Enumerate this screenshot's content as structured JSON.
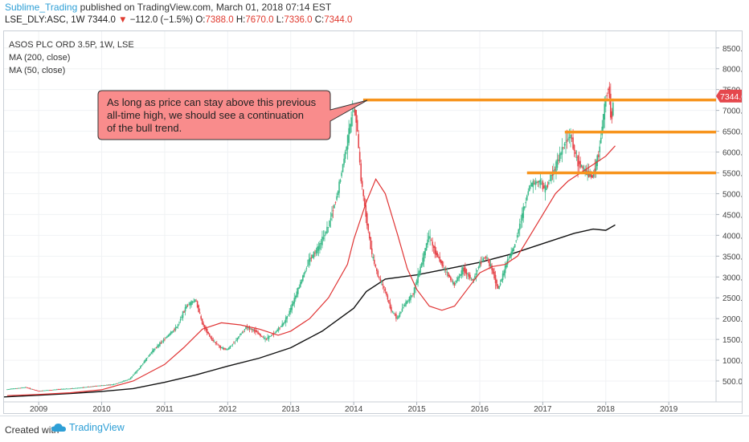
{
  "header": {
    "author": "Sublime_Trading",
    "published_text": "published on TradingView.com, March 01, 2018 07:14 EST",
    "symbol": "LSE_DLY:ASC, 1W",
    "last": "7344.0",
    "change": "−112.0 (−1.5%)",
    "o_label": "O:",
    "o": "7388.0",
    "h_label": "H:",
    "h": "7670.0",
    "l_label": "L:",
    "l": "7336.0",
    "c_label": "C:",
    "c": "7344.0"
  },
  "legend": {
    "instrument": "ASOS PLC ORD 3.5P, 1W, LSE",
    "ma200": "MA (200, close)",
    "ma50": "MA (50, close)"
  },
  "annotation": {
    "line1": "As long as price can stay above this previous",
    "line2": "all-time high, we should see a continuation",
    "line3": "of the bull trend."
  },
  "price_tag": "7344.0",
  "footer": {
    "created_with": "Created with",
    "brand": "TradingView"
  },
  "colors": {
    "up": "#3dba8a",
    "down": "#e5484d",
    "ma50": "#e03434",
    "ma200": "#111111",
    "level": "#f7941d",
    "callout_fill": "#f98c8c",
    "callout_stroke": "#333333",
    "tag": "#e5484d"
  },
  "chart_data": {
    "type": "line",
    "title": "ASOS PLC ORD 3.5P, 1W, LSE",
    "xlim": [
      2008.45,
      2019.75
    ],
    "ylim": [
      0,
      8900
    ],
    "x_ticks": [
      "2009",
      "2010",
      "2011",
      "2012",
      "2013",
      "2014",
      "2015",
      "2016",
      "2017",
      "2018",
      "2019"
    ],
    "y_ticks": [
      "500.0",
      "1000.0",
      "1500.0",
      "2000.0",
      "2500.0",
      "3000.0",
      "3500.0",
      "4000.0",
      "4500.0",
      "5000.0",
      "5500.0",
      "6000.0",
      "6500.0",
      "7000.0",
      "7500.0",
      "8000.0",
      "8500.0"
    ],
    "series": [
      {
        "name": "ASOS PLC ORD 3.5P",
        "style": "candles",
        "x": [
          2008.5,
          2008.8,
          2009.0,
          2009.3,
          2009.6,
          2009.9,
          2010.2,
          2010.45,
          2010.6,
          2010.8,
          2011.0,
          2011.2,
          2011.35,
          2011.5,
          2011.6,
          2011.75,
          2011.9,
          2012.0,
          2012.15,
          2012.3,
          2012.45,
          2012.6,
          2012.75,
          2012.9,
          2013.0,
          2013.15,
          2013.3,
          2013.45,
          2013.6,
          2013.75,
          2013.9,
          2014.0,
          2014.05,
          2014.12,
          2014.2,
          2014.3,
          2014.4,
          2014.5,
          2014.6,
          2014.7,
          2014.8,
          2014.95,
          2015.1,
          2015.2,
          2015.3,
          2015.45,
          2015.6,
          2015.75,
          2015.9,
          2016.0,
          2016.1,
          2016.2,
          2016.3,
          2016.45,
          2016.55,
          2016.7,
          2016.8,
          2016.95,
          2017.05,
          2017.2,
          2017.35,
          2017.45,
          2017.55,
          2017.7,
          2017.8,
          2017.9,
          2018.0,
          2018.05,
          2018.1,
          2018.13
        ],
        "y": [
          300,
          350,
          260,
          300,
          330,
          380,
          420,
          550,
          800,
          1200,
          1500,
          1800,
          2300,
          2450,
          1900,
          1500,
          1300,
          1250,
          1500,
          1800,
          1700,
          1500,
          1650,
          1900,
          2200,
          2800,
          3400,
          3700,
          4200,
          5000,
          6200,
          7050,
          6800,
          5400,
          4500,
          3500,
          3000,
          2700,
          2200,
          2000,
          2300,
          2600,
          3400,
          4000,
          3600,
          3200,
          2800,
          3200,
          2900,
          3300,
          3500,
          3200,
          2700,
          3400,
          3700,
          4600,
          5200,
          5300,
          5100,
          5600,
          6200,
          6400,
          5800,
          5500,
          5400,
          6000,
          7200,
          7600,
          6700,
          7344
        ]
      },
      {
        "name": "MA (50, close)",
        "x": [
          2008.5,
          2009.0,
          2009.5,
          2010.0,
          2010.5,
          2011.0,
          2011.3,
          2011.6,
          2011.9,
          2012.2,
          2012.5,
          2012.8,
          2013.0,
          2013.3,
          2013.6,
          2013.9,
          2014.0,
          2014.2,
          2014.35,
          2014.5,
          2014.7,
          2014.85,
          2015.0,
          2015.2,
          2015.4,
          2015.6,
          2015.8,
          2016.0,
          2016.2,
          2016.4,
          2016.6,
          2016.8,
          2017.0,
          2017.2,
          2017.4,
          2017.6,
          2017.8,
          2018.0,
          2018.15
        ],
        "y": [
          150,
          180,
          220,
          290,
          500,
          900,
          1300,
          1750,
          1900,
          1850,
          1750,
          1600,
          1700,
          2000,
          2500,
          3300,
          3900,
          4800,
          5350,
          5000,
          4000,
          3200,
          2700,
          2300,
          2200,
          2300,
          2700,
          3100,
          3250,
          3300,
          3500,
          4000,
          4500,
          5000,
          5300,
          5500,
          5700,
          5900,
          6150
        ]
      },
      {
        "name": "MA (200, close)",
        "x": [
          2008.45,
          2009.0,
          2009.5,
          2010.0,
          2010.5,
          2011.0,
          2011.5,
          2012.0,
          2012.5,
          2013.0,
          2013.5,
          2014.0,
          2014.2,
          2014.5,
          2015.0,
          2015.5,
          2016.0,
          2016.5,
          2017.0,
          2017.5,
          2017.8,
          2018.0,
          2018.15
        ],
        "y": [
          120,
          160,
          200,
          250,
          320,
          470,
          650,
          860,
          1050,
          1300,
          1700,
          2250,
          2650,
          2950,
          3050,
          3200,
          3350,
          3550,
          3800,
          4050,
          4150,
          4120,
          4250
        ]
      }
    ],
    "horizontal_levels": [
      {
        "y": 7250,
        "from": 2014.15,
        "to": 2019.75
      },
      {
        "y": 6480,
        "from": 2017.35,
        "to": 2019.75
      },
      {
        "y": 5500,
        "from": 2016.75,
        "to": 2019.75
      }
    ]
  }
}
